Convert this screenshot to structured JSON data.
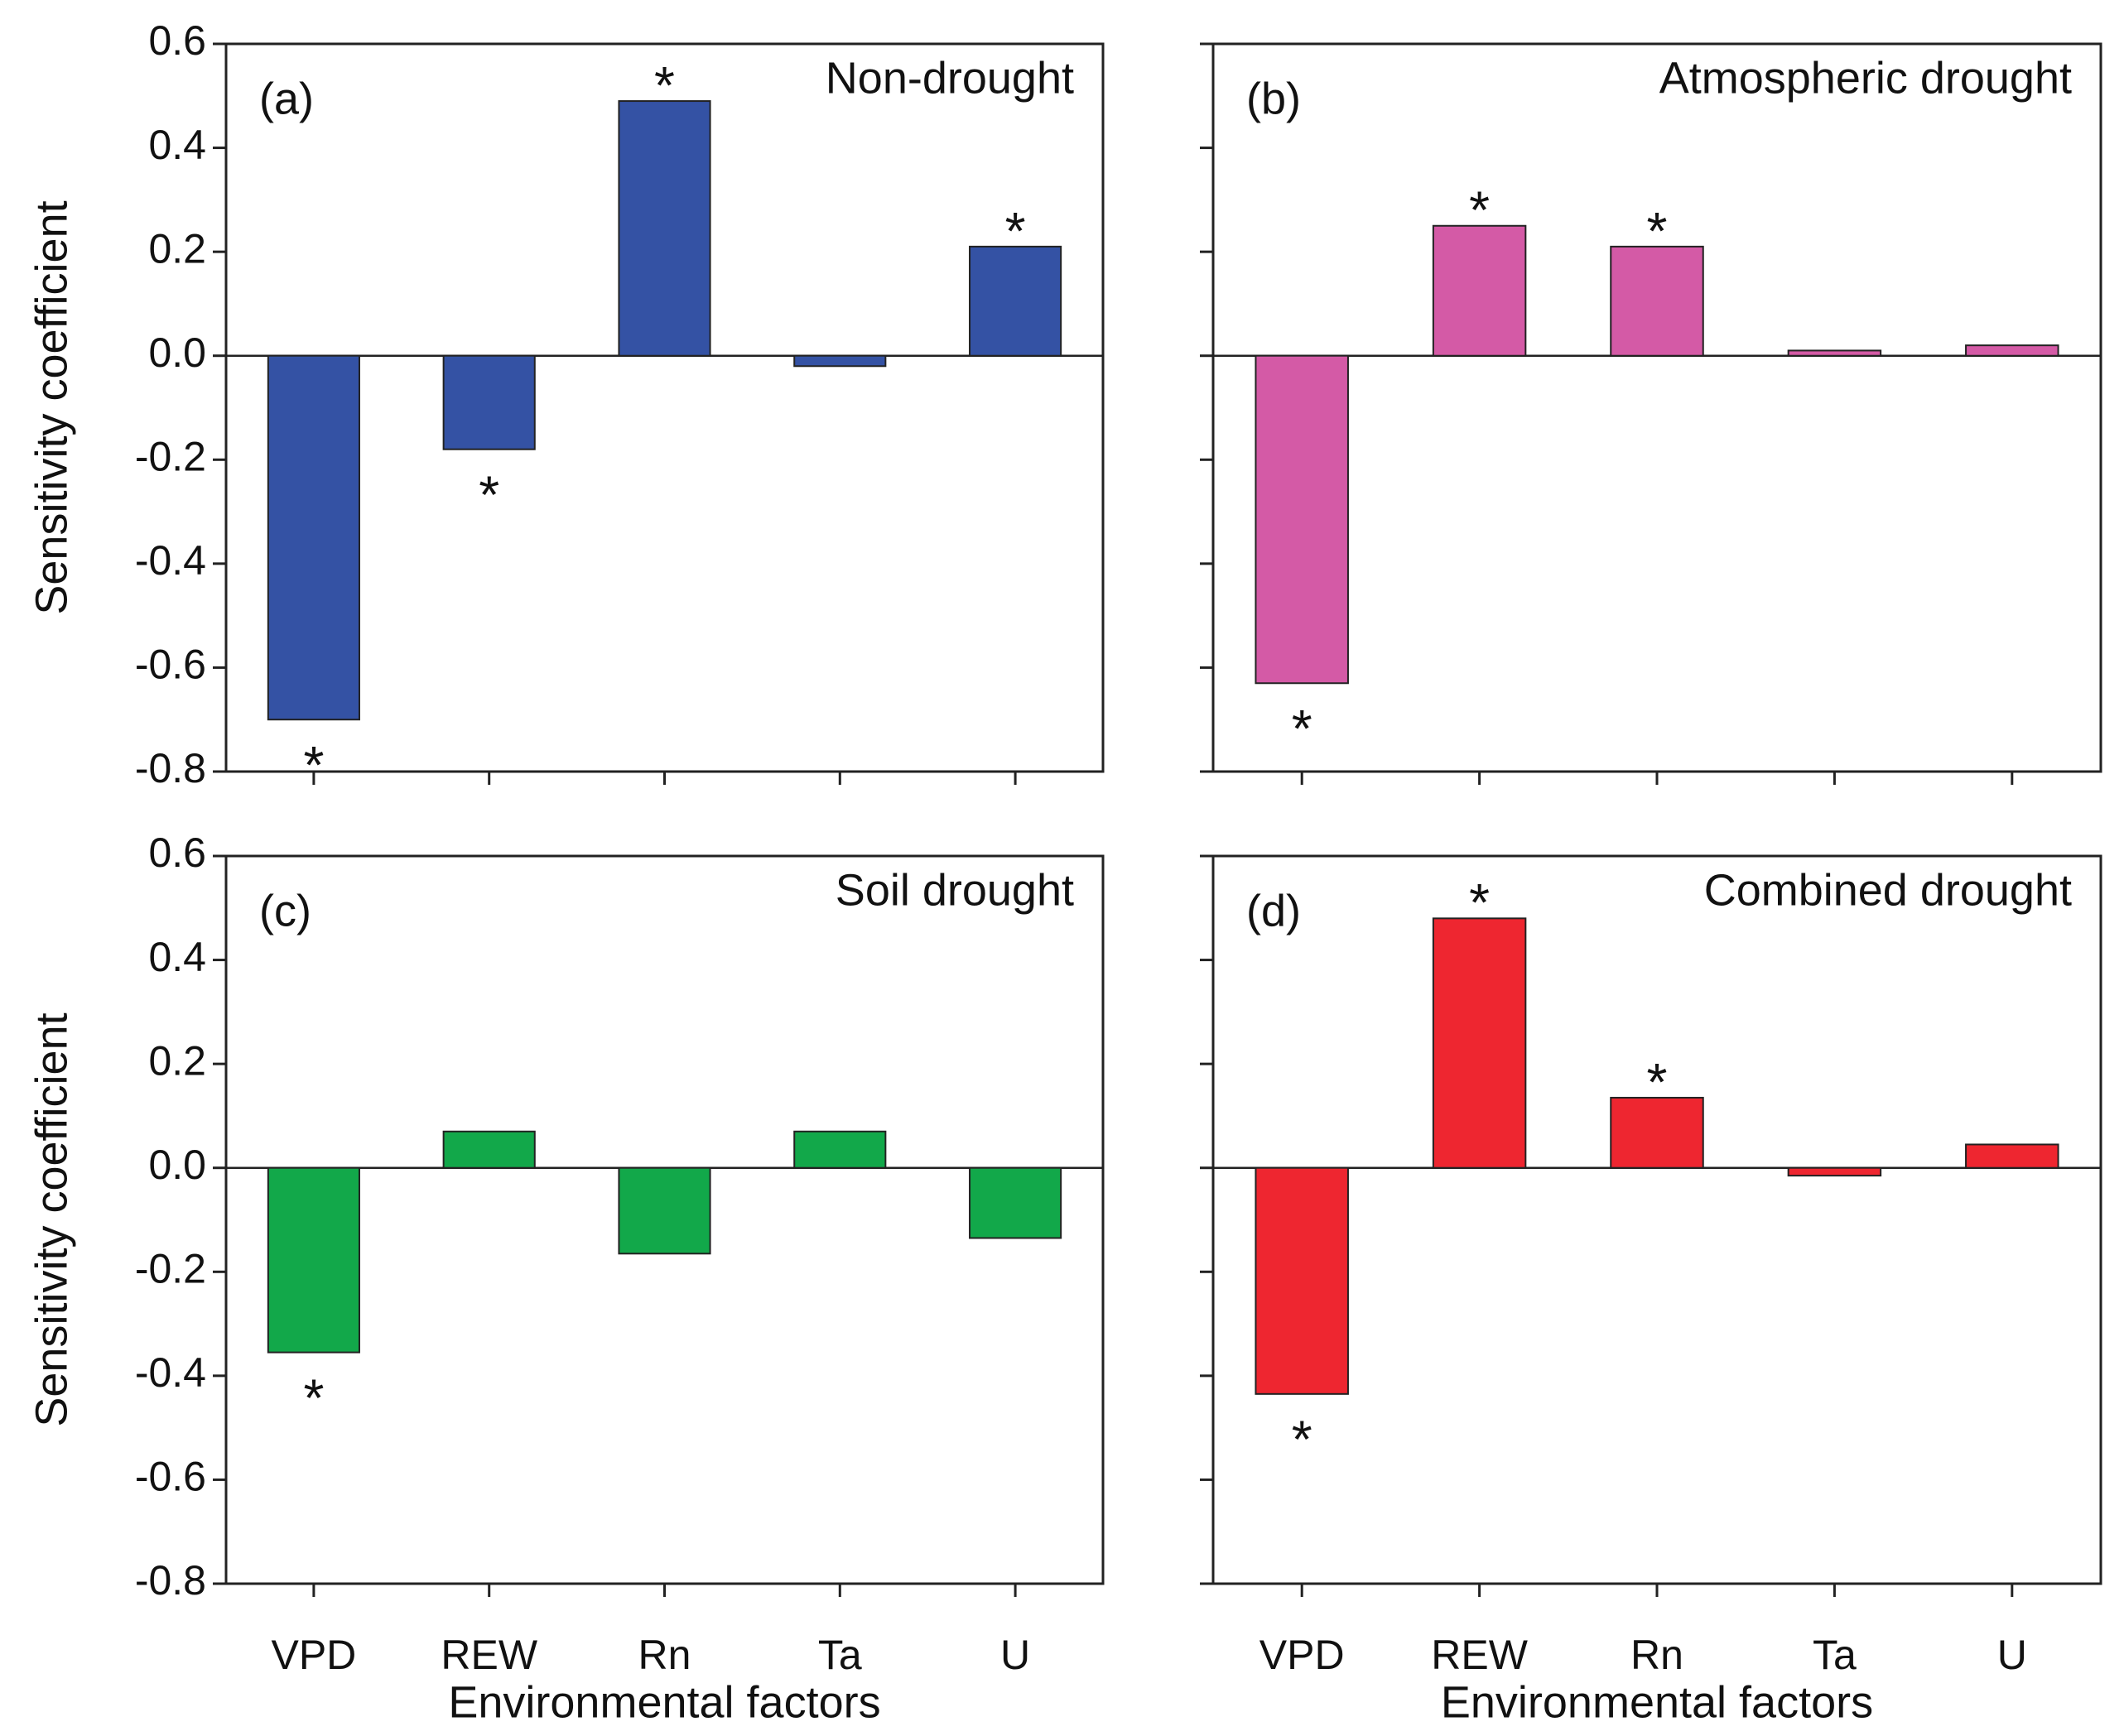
{
  "chart_data": [
    {
      "type": "bar",
      "panel": "(a)",
      "title": "Non-drought",
      "categories": [
        null,
        null,
        null,
        null,
        null
      ],
      "values": [
        -0.7,
        -0.18,
        0.49,
        -0.02,
        0.21
      ],
      "significance": [
        "*",
        "*",
        "*",
        null,
        "*"
      ],
      "color": "#3452a4",
      "ylabel": "Sensitivity coefficient",
      "ylim": [
        -0.8,
        0.6
      ],
      "yticks": [
        -0.8,
        -0.6,
        -0.4,
        -0.2,
        {
          "value": 0,
          "label": "0.0"
        },
        0.2,
        0.4,
        0.6
      ],
      "ytick_labels": true
    },
    {
      "type": "bar",
      "panel": "(b)",
      "title": "Atmospheric drought",
      "categories": [
        null,
        null,
        null,
        null,
        null
      ],
      "values": [
        -0.63,
        0.25,
        0.21,
        0.01,
        0.02
      ],
      "significance": [
        "*",
        "*",
        "*",
        null,
        null
      ],
      "color": "#d45aa6",
      "ylim": [
        -0.8,
        0.6
      ],
      "yticks": [
        -0.8,
        -0.6,
        -0.4,
        -0.2,
        0,
        0.2,
        0.4,
        0.6
      ],
      "ytick_labels": false
    },
    {
      "type": "bar",
      "panel": "(c)",
      "title": "Soil drought",
      "categories": [
        "VPD",
        "REW",
        "Rn",
        "Ta",
        "U"
      ],
      "values": [
        -0.355,
        0.07,
        -0.165,
        0.07,
        -0.135
      ],
      "significance": [
        "*",
        null,
        null,
        null,
        null
      ],
      "color": "#12a84a",
      "ylabel": "Sensitivity coefficient",
      "xlabel": "Environmental factors",
      "ylim": [
        -0.8,
        0.6
      ],
      "yticks": [
        -0.8,
        -0.6,
        -0.4,
        -0.2,
        {
          "value": 0,
          "label": "0.0"
        },
        0.2,
        0.4,
        0.6
      ],
      "ytick_labels": true
    },
    {
      "type": "bar",
      "panel": "(d)",
      "title": "Combined drought",
      "categories": [
        "VPD",
        "REW",
        "Rn",
        "Ta",
        "U"
      ],
      "values": [
        -0.435,
        0.48,
        0.135,
        -0.015,
        0.045
      ],
      "significance": [
        "*",
        "*",
        "*",
        null,
        null
      ],
      "color": "#ee2630",
      "xlabel": "Environmental factors",
      "ylim": [
        -0.8,
        0.6
      ],
      "yticks": [
        -0.8,
        -0.6,
        -0.4,
        -0.2,
        0,
        0.2,
        0.4,
        0.6
      ],
      "ytick_labels": false
    }
  ]
}
